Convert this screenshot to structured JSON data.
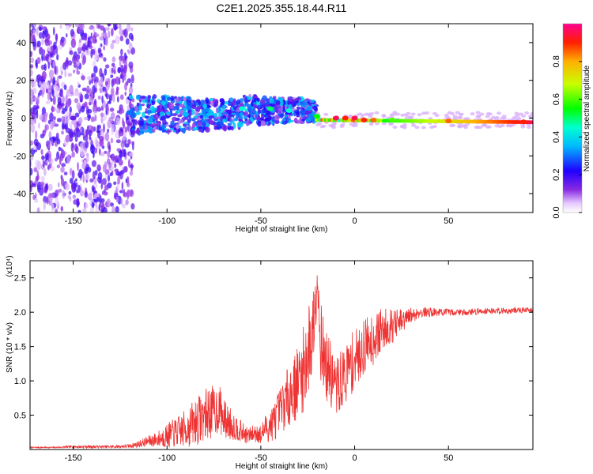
{
  "title": "C2E1.2025.355.18.44.R11",
  "chart_data": [
    {
      "type": "heatmap",
      "name": "spectrogram",
      "xlabel": "Height of straight line (km)",
      "ylabel": "Frequency (Hz)",
      "xlim": [
        -173,
        95
      ],
      "ylim": [
        -50,
        50
      ],
      "xticks": [
        -150,
        -100,
        -50,
        0,
        50
      ],
      "yticks": [
        -40,
        -20,
        0,
        20,
        40
      ],
      "xtick_labels": [
        "-150",
        "-100",
        "-50",
        "0",
        "50"
      ],
      "ytick_labels": [
        "-40",
        "-20",
        "0",
        "20",
        "40"
      ],
      "colorbar": {
        "label": "Normalized spectral amplitude",
        "range": [
          0,
          1
        ],
        "ticks": [
          0.0,
          0.2,
          0.4,
          0.6,
          0.8
        ],
        "tick_labels": [
          "0.0",
          "0.2",
          "0.4",
          "0.6",
          "0.8"
        ]
      },
      "blobs": [
        {
          "x": -150,
          "y": 0,
          "amp": 0.15
        },
        {
          "x": -120,
          "y": 3,
          "amp": 0.3
        },
        {
          "x": -90,
          "y": 2,
          "amp": 0.35
        },
        {
          "x": -60,
          "y": 5,
          "amp": 0.45
        },
        {
          "x": -45,
          "y": 5,
          "amp": 0.5
        },
        {
          "x": -35,
          "y": 4,
          "amp": 0.45
        },
        {
          "x": -20,
          "y": 1,
          "amp": 0.55
        },
        {
          "x": -10,
          "y": 0,
          "amp": 0.95
        },
        {
          "x": -5,
          "y": 0,
          "amp": 0.9
        },
        {
          "x": 0,
          "y": 0,
          "amp": 0.95
        },
        {
          "x": 5,
          "y": -1,
          "amp": 0.9
        },
        {
          "x": 10,
          "y": -1,
          "amp": 0.85
        },
        {
          "x": 20,
          "y": -1,
          "amp": 0.6
        },
        {
          "x": 50,
          "y": -1.5,
          "amp": 0.85
        },
        {
          "x": 90,
          "y": -2,
          "amp": 0.9
        }
      ]
    },
    {
      "type": "line",
      "name": "snr",
      "xlabel": "Height of straight line (km)",
      "ylabel": "SNR (10 * v/v)",
      "scale_label": "(x10⁴)",
      "xlim": [
        -173,
        95
      ],
      "ylim": [
        0,
        2.75
      ],
      "xticks": [
        -150,
        -100,
        -50,
        0,
        50
      ],
      "yticks": [
        0.5,
        1.0,
        1.5,
        2.0,
        2.5
      ],
      "xtick_labels": [
        "-150",
        "-100",
        "-50",
        "0",
        "50"
      ],
      "ytick_labels": [
        "0.5",
        "1.0",
        "1.5",
        "2.0",
        "2.5"
      ],
      "color": "#ee3333",
      "x": [
        -173,
        -160,
        -150,
        -140,
        -130,
        -120,
        -115,
        -110,
        -105,
        -100,
        -95,
        -90,
        -85,
        -80,
        -77,
        -75,
        -72,
        -70,
        -65,
        -62,
        -60,
        -57,
        -55,
        -52,
        -50,
        -48,
        -45,
        -42,
        -40,
        -37,
        -35,
        -32,
        -30,
        -28,
        -25,
        -23,
        -22,
        -21,
        -20,
        -19,
        -18,
        -17,
        -15,
        -13,
        -10,
        -7,
        -5,
        -3,
        0,
        3,
        5,
        8,
        10,
        13,
        15,
        18,
        20,
        25,
        30,
        35,
        40,
        50,
        60,
        70,
        80,
        90,
        95
      ],
      "y": [
        0.03,
        0.03,
        0.04,
        0.04,
        0.04,
        0.05,
        0.08,
        0.12,
        0.15,
        0.2,
        0.25,
        0.3,
        0.4,
        0.5,
        0.55,
        0.55,
        0.6,
        0.45,
        0.35,
        0.3,
        0.25,
        0.2,
        0.22,
        0.25,
        0.2,
        0.3,
        0.35,
        0.45,
        0.55,
        0.7,
        0.8,
        0.9,
        1.0,
        1.1,
        1.4,
        1.6,
        1.8,
        2.2,
        2.6,
        2.0,
        1.6,
        1.4,
        1.2,
        1.1,
        0.9,
        1.0,
        1.1,
        1.2,
        1.3,
        1.4,
        1.5,
        1.6,
        1.6,
        1.7,
        1.75,
        1.8,
        1.8,
        1.85,
        1.95,
        2.0,
        2.0,
        2.0,
        2.0,
        2.02,
        2.02,
        2.03,
        2.03
      ],
      "noise": [
        0.01,
        0.01,
        0.02,
        0.02,
        0.02,
        0.03,
        0.05,
        0.08,
        0.12,
        0.18,
        0.22,
        0.28,
        0.35,
        0.38,
        0.4,
        0.38,
        0.35,
        0.3,
        0.22,
        0.18,
        0.15,
        0.12,
        0.12,
        0.15,
        0.15,
        0.2,
        0.25,
        0.3,
        0.35,
        0.4,
        0.45,
        0.5,
        0.55,
        0.6,
        0.7,
        0.7,
        0.7,
        0.6,
        0.4,
        0.5,
        0.6,
        0.6,
        0.5,
        0.5,
        0.45,
        0.45,
        0.45,
        0.45,
        0.45,
        0.4,
        0.4,
        0.4,
        0.38,
        0.35,
        0.3,
        0.28,
        0.25,
        0.2,
        0.12,
        0.08,
        0.07,
        0.05,
        0.05,
        0.05,
        0.05,
        0.04,
        0.04
      ]
    }
  ]
}
